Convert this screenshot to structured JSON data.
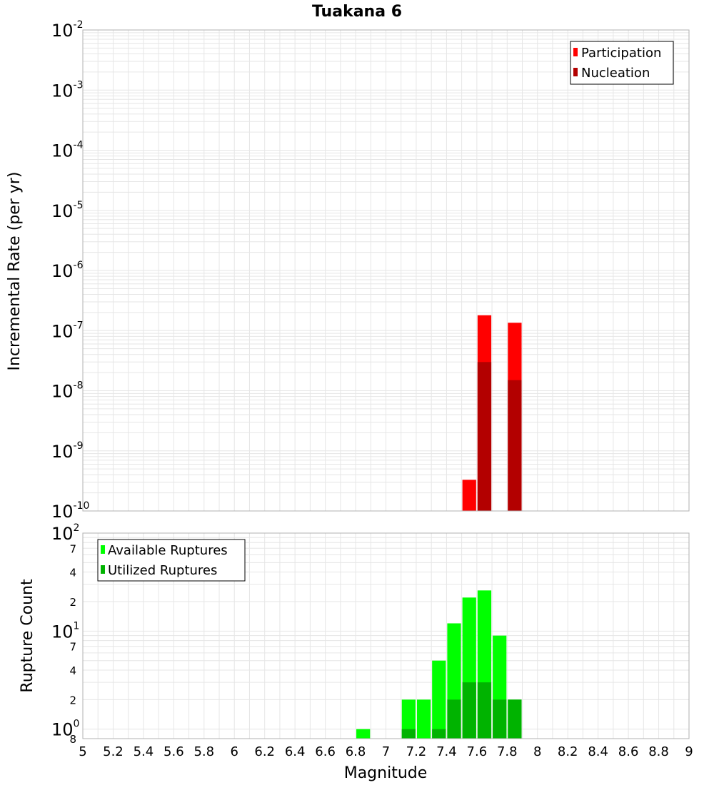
{
  "title": "Tuakana 6",
  "xlabel": "Magnitude",
  "colors": {
    "participation": "#ff0000",
    "nucleation": "#b30000",
    "available": "#00ff00",
    "utilized": "#00b300",
    "grid": "#e6e6e6",
    "frame": "#b0b0b0"
  },
  "x_ticks": [
    "5",
    "5.2",
    "5.4",
    "5.6",
    "5.8",
    "6",
    "6.2",
    "6.4",
    "6.6",
    "6.8",
    "7",
    "7.2",
    "7.4",
    "7.6",
    "7.8",
    "8",
    "8.2",
    "8.4",
    "8.6",
    "8.8",
    "9"
  ],
  "top_y_ticks": [
    {
      "base": "10",
      "exp": "-2"
    },
    {
      "base": "10",
      "exp": "-3"
    },
    {
      "base": "10",
      "exp": "-4"
    },
    {
      "base": "10",
      "exp": "-5"
    },
    {
      "base": "10",
      "exp": "-6"
    },
    {
      "base": "10",
      "exp": "-7"
    },
    {
      "base": "10",
      "exp": "-8"
    },
    {
      "base": "10",
      "exp": "-9"
    },
    {
      "base": "10",
      "exp": "-10"
    }
  ],
  "bottom_y_major": [
    {
      "base": "10",
      "exp": "2"
    },
    {
      "base": "10",
      "exp": "1"
    },
    {
      "base": "10",
      "exp": "0"
    }
  ],
  "bottom_y_minor": [
    "7",
    "4",
    "2",
    "7",
    "4",
    "2",
    "8"
  ],
  "chart_data": [
    {
      "type": "bar",
      "ylabel": "Incremental Rate (per yr)",
      "yscale": "log",
      "ylim": [
        1e-10,
        0.01
      ],
      "xlim": [
        5,
        9
      ],
      "bin_width": 0.1,
      "legend_position": "top-right",
      "series": [
        {
          "name": "Participation",
          "x": [
            7.55,
            7.65,
            7.85
          ],
          "values": [
            3.3e-10,
            1.8e-07,
            1.35e-07
          ]
        },
        {
          "name": "Nucleation",
          "x": [
            7.65,
            7.85
          ],
          "values": [
            3e-08,
            1.5e-08
          ]
        }
      ]
    },
    {
      "type": "bar",
      "ylabel": "Rupture Count",
      "yscale": "log",
      "ylim": [
        0.8,
        100
      ],
      "xlim": [
        5,
        9
      ],
      "bin_width": 0.1,
      "legend_position": "top-left",
      "series": [
        {
          "name": "Available Ruptures",
          "x": [
            6.85,
            7.15,
            7.25,
            7.35,
            7.45,
            7.55,
            7.65,
            7.75,
            7.85
          ],
          "values": [
            1,
            2,
            2,
            5,
            12,
            22,
            26,
            9,
            2
          ]
        },
        {
          "name": "Utilized Ruptures",
          "x": [
            7.15,
            7.35,
            7.45,
            7.55,
            7.65,
            7.75,
            7.85
          ],
          "values": [
            1,
            1,
            2,
            3,
            3,
            2,
            2
          ]
        }
      ]
    }
  ]
}
